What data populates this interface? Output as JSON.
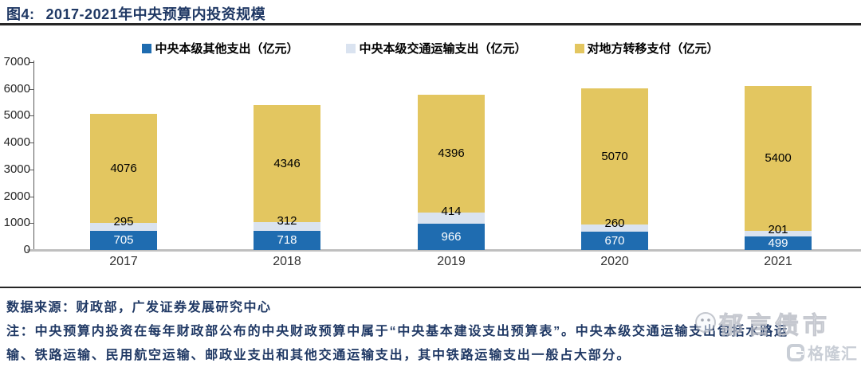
{
  "header": {
    "label": "图4:",
    "title": "2017-2021年中央预算内投资规模"
  },
  "chart_data": {
    "type": "bar",
    "stacked": true,
    "title": "2017-2021年中央预算内投资规模",
    "categories": [
      "2017",
      "2018",
      "2019",
      "2020",
      "2021"
    ],
    "series": [
      {
        "name": "中央本级其他支出（亿元）",
        "color": "#1F6CB0",
        "label_color": "#FFFFFF",
        "label_placement": "center",
        "values": [
          705,
          718,
          966,
          670,
          499
        ]
      },
      {
        "name": "中央本级交通运输支出（亿元）",
        "color": "#DAE3F0",
        "label_color": "#000000",
        "label_placement": "top-edge",
        "values": [
          295,
          312,
          414,
          260,
          201
        ]
      },
      {
        "name": "对地方转移支付（亿元）",
        "color": "#E3C660",
        "label_color": "#000000",
        "label_placement": "center",
        "values": [
          4076,
          4346,
          4396,
          5070,
          5400
        ]
      }
    ],
    "ylim": [
      0,
      7000
    ],
    "yticks": [
      0,
      1000,
      2000,
      3000,
      4000,
      5000,
      6000,
      7000
    ],
    "legend_position": "top",
    "grid": false,
    "axis_colors": {
      "spine": "#595959",
      "baseline": "#BFBFBF"
    }
  },
  "footer": {
    "source": "数据来源：财政部，广发证券发展研究中心",
    "note_lines": [
      "注：中央预算内投资在每年财政部公布的中央财政预算中属于“中央基本建设支出预算表”。中央本级交通运输支出包括水路运",
      "输、铁路运输、民用航空运输、邮政业支出和其他交通运输支出，其中铁路运输支出一般占大部分。"
    ]
  },
  "watermarks": {
    "brand1": "郁言债市",
    "brand2": "格隆汇"
  }
}
